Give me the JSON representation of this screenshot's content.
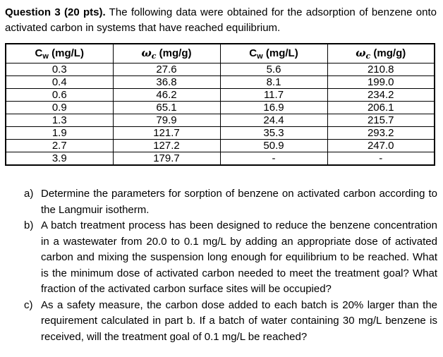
{
  "intro": {
    "bold": "Question 3 (20 pts).",
    "text": " The following data were obtained for the adsorption of benzene onto activated carbon in systems that have reached equilibrium."
  },
  "table": {
    "headers": [
      {
        "main": "C",
        "sub": "w",
        "unit": " (mg/L)"
      },
      {
        "main": "ω",
        "sub": "c",
        "unit": " (mg/g)"
      },
      {
        "main": "C",
        "sub": "w",
        "unit": " (mg/L)"
      },
      {
        "main": "ω",
        "sub": "c",
        "unit": " (mg/g)"
      }
    ],
    "rows": [
      [
        "0.3",
        "27.6",
        "5.6",
        "210.8"
      ],
      [
        "0.4",
        "36.8",
        "8.1",
        "199.0"
      ],
      [
        "0.6",
        "46.2",
        "11.7",
        "234.2"
      ],
      [
        "0.9",
        "65.1",
        "16.9",
        "206.1"
      ],
      [
        "1.3",
        "79.9",
        "24.4",
        "215.7"
      ],
      [
        "1.9",
        "121.7",
        "35.3",
        "293.2"
      ],
      [
        "2.7",
        "127.2",
        "50.9",
        "247.0"
      ],
      [
        "3.9",
        "179.7",
        "-",
        "-"
      ]
    ]
  },
  "questions": [
    {
      "label": "a)",
      "text": "Determine the parameters for sorption of benzene on activated carbon according to the Langmuir isotherm."
    },
    {
      "label": "b)",
      "text": "A batch treatment process has been designed to reduce the benzene concentration in a wastewater from 20.0 to 0.1 mg/L by adding an appropriate dose of activated carbon and mixing the suspension long enough for equilibrium to be reached. What is the minimum dose of activated carbon needed to meet the treatment goal? What fraction of the activated carbon surface sites will be occupied?"
    },
    {
      "label": "c)",
      "text": "As a safety measure, the carbon dose added to each batch is 20% larger than the requirement calculated in part b. If a batch of water containing 30 mg/L benzene is received, will the treatment goal of 0.1 mg/L be reached?"
    }
  ],
  "colors": {
    "text": "#000000",
    "background": "#ffffff",
    "table_border": "#000000"
  }
}
